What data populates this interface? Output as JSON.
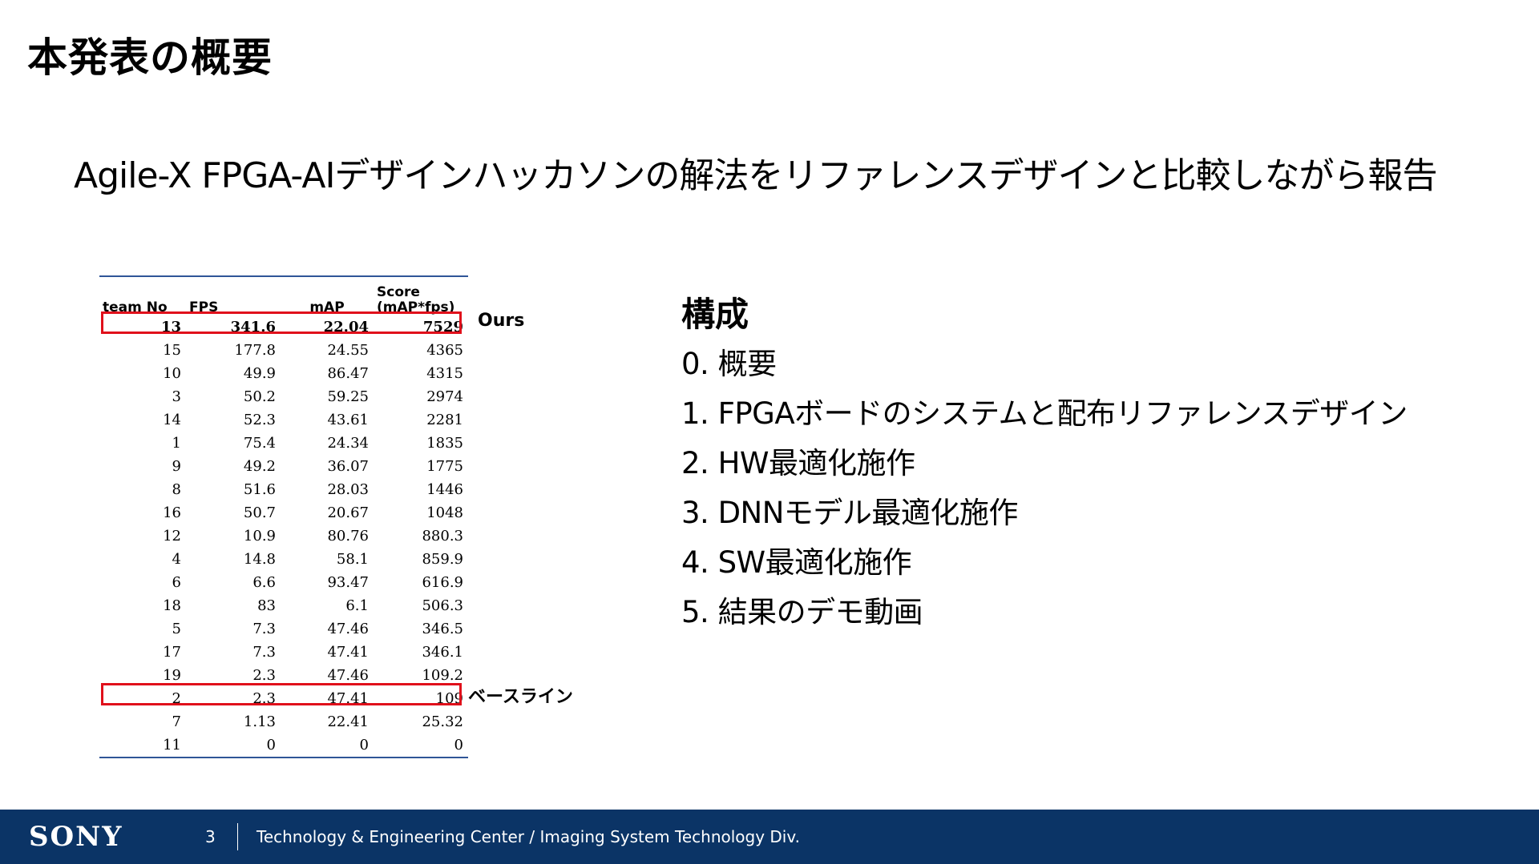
{
  "title": "本発表の概要",
  "subtitle": "Agile-X FPGA-AIデザインハッカソンの解法をリファレンスデザインと比較しながら報告",
  "table": {
    "headers": [
      "team No",
      "FPS",
      "mAP",
      "Score (mAP*fps)"
    ],
    "header_score_line1": "Score",
    "header_score_line2": "(mAP*fps)",
    "rows": [
      [
        "13",
        "341.6",
        "22.04",
        "7529"
      ],
      [
        "15",
        "177.8",
        "24.55",
        "4365"
      ],
      [
        "10",
        "49.9",
        "86.47",
        "4315"
      ],
      [
        "3",
        "50.2",
        "59.25",
        "2974"
      ],
      [
        "14",
        "52.3",
        "43.61",
        "2281"
      ],
      [
        "1",
        "75.4",
        "24.34",
        "1835"
      ],
      [
        "9",
        "49.2",
        "36.07",
        "1775"
      ],
      [
        "8",
        "51.6",
        "28.03",
        "1446"
      ],
      [
        "16",
        "50.7",
        "20.67",
        "1048"
      ],
      [
        "12",
        "10.9",
        "80.76",
        "880.3"
      ],
      [
        "4",
        "14.8",
        "58.1",
        "859.9"
      ],
      [
        "6",
        "6.6",
        "93.47",
        "616.9"
      ],
      [
        "18",
        "83",
        "6.1",
        "506.3"
      ],
      [
        "5",
        "7.3",
        "47.46",
        "346.5"
      ],
      [
        "17",
        "7.3",
        "47.41",
        "346.1"
      ],
      [
        "19",
        "2.3",
        "47.46",
        "109.2"
      ],
      [
        "2",
        "2.3",
        "47.41",
        "109"
      ],
      [
        "7",
        "1.13",
        "22.41",
        "25.32"
      ],
      [
        "11",
        "0",
        "0",
        "0"
      ]
    ],
    "highlight_color": "#e0101b",
    "rule_color": "#2f5597"
  },
  "labels": {
    "ours": "Ours",
    "baseline": "ベースライン"
  },
  "outline": {
    "heading": "構成",
    "items": [
      "0. 概要",
      "1. FPGAボードのシステムと配布リファレンスデザイン",
      "2. HW最適化施作",
      "3. DNNモデル最適化施作",
      "4. SW最適化施作",
      "5. 結果のデモ動画"
    ]
  },
  "footer": {
    "logo": "SONY",
    "page_number": "3",
    "text": "Technology & Engineering Center / Imaging System Technology Div.",
    "background": "#0b3466"
  }
}
